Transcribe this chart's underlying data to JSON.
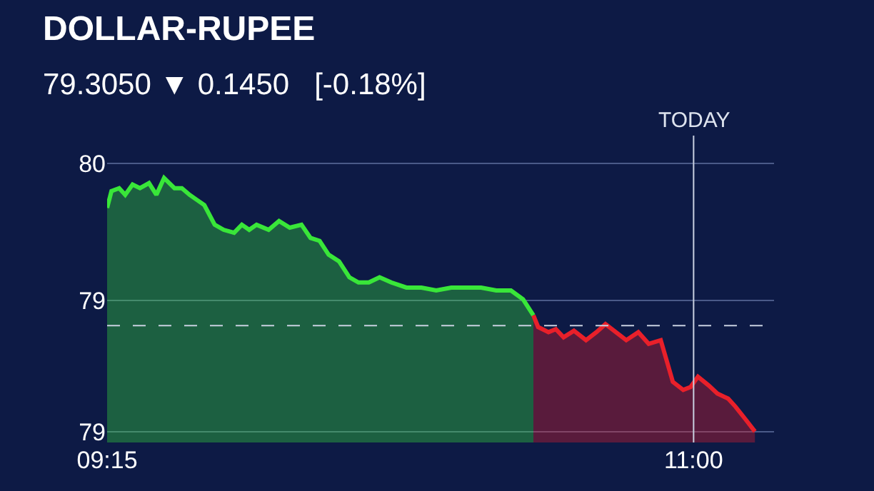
{
  "chart_data": {
    "type": "area",
    "title": "DOLLAR-RUPEE",
    "subtitle": "79.3050 ▼ 0.1450   [-0.18%]",
    "series": [
      {
        "color": "#39e639",
        "x": [
          9.25,
          9.263,
          9.286,
          9.304,
          9.326,
          9.348,
          9.375,
          9.397,
          9.42,
          9.451,
          9.473,
          9.496,
          9.518,
          9.54,
          9.571,
          9.598,
          9.629,
          9.652,
          9.674,
          9.696,
          9.732,
          9.763,
          9.795,
          9.83,
          9.857,
          9.884,
          9.911,
          9.942,
          9.973,
          10.0,
          10.031,
          10.063,
          10.098,
          10.143,
          10.188,
          10.232,
          10.277,
          10.321,
          10.366,
          10.411,
          10.455,
          10.491,
          10.522
        ],
        "values": [
          79.611,
          79.634,
          79.638,
          79.629,
          79.643,
          79.638,
          79.645,
          79.629,
          79.652,
          79.638,
          79.638,
          79.629,
          79.622,
          79.615,
          79.588,
          79.581,
          79.577,
          79.588,
          79.581,
          79.588,
          79.581,
          79.593,
          79.584,
          79.588,
          79.57,
          79.566,
          79.547,
          79.538,
          79.516,
          79.509,
          79.509,
          79.516,
          79.509,
          79.502,
          79.502,
          79.498,
          79.502,
          79.502,
          79.502,
          79.498,
          79.498,
          79.486,
          79.464
        ]
      },
      {
        "color": "#e8202a",
        "x": [
          10.522,
          10.536,
          10.567,
          10.589,
          10.612,
          10.643,
          10.679,
          10.71,
          10.737,
          10.768,
          10.799,
          10.835,
          10.866,
          10.902,
          10.938,
          10.969,
          10.991,
          11.013,
          11.045,
          11.071,
          11.103,
          11.125,
          11.156,
          11.183
        ],
        "values": [
          79.464,
          79.448,
          79.441,
          79.445,
          79.434,
          79.443,
          79.43,
          79.441,
          79.452,
          79.441,
          79.43,
          79.441,
          79.425,
          79.43,
          79.373,
          79.362,
          79.366,
          79.38,
          79.368,
          79.357,
          79.35,
          79.339,
          79.321,
          79.305
        ]
      }
    ],
    "xlim": [
      9.25,
      11.24
    ],
    "xticks": [
      {
        "value": 9.25,
        "label": "09:15"
      },
      {
        "value": 11,
        "label": "11:00"
      }
    ],
    "ylim": [
      79.29,
      79.71
    ],
    "yticks": [
      {
        "value": 79.305,
        "label": "79"
      },
      {
        "value": 79.484,
        "label": "79"
      },
      {
        "value": 79.672,
        "label": "80"
      }
    ],
    "grid": "y",
    "ref_lines": [
      {
        "axis": "x",
        "value": 11,
        "label": "TODAY",
        "color": "#c8d0e0",
        "line_style": "solid"
      },
      {
        "axis": "y",
        "value": 79.45,
        "label": null,
        "color": "#c8d0e0",
        "line_style": "dashed"
      }
    ]
  }
}
